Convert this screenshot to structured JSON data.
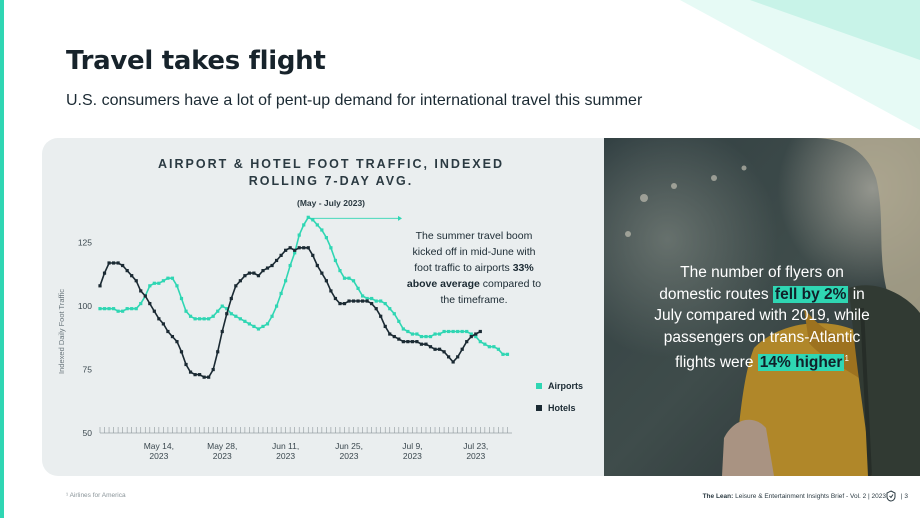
{
  "page": {
    "title": "Travel takes flight",
    "subtitle": "U.S. consumers have a lot of pent-up demand for international travel this summer"
  },
  "chart_data": {
    "type": "line",
    "title_line1": "AIRPORT & HOTEL FOOT TRAFFIC, INDEXED",
    "title_line2": "ROLLING 7-DAY AVG.",
    "subtitle": "(May - July 2023)",
    "ylabel": "Indexed Daily Foot Traffic",
    "ylim": [
      50,
      130
    ],
    "yticks": [
      50,
      75,
      100,
      125
    ],
    "x_start": "2023-05-01",
    "x_end": "2023-07-31",
    "xticks": [
      {
        "day": 13,
        "line1": "May 14,",
        "line2": "2023"
      },
      {
        "day": 27,
        "line1": "May 28,",
        "line2": "2023"
      },
      {
        "day": 41,
        "line1": "Jun 11,",
        "line2": "2023"
      },
      {
        "day": 55,
        "line1": "Jun 25,",
        "line2": "2023"
      },
      {
        "day": 69,
        "line1": "Jul 9,",
        "line2": "2023"
      },
      {
        "day": 83,
        "line1": "Jul 23,",
        "line2": "2023"
      }
    ],
    "legend_position": "bottom-right",
    "series": [
      {
        "name": "Airports",
        "color": "#2fd6b3",
        "values": [
          99,
          99,
          99,
          99,
          98,
          98,
          99,
          99,
          99,
          101,
          104,
          108,
          109,
          109,
          110,
          111,
          111,
          108,
          103,
          98,
          96,
          95,
          95,
          95,
          95,
          96,
          98,
          100,
          99,
          97,
          96,
          95,
          94,
          93,
          92,
          91,
          92,
          93,
          96,
          100,
          105,
          110,
          116,
          121,
          128,
          132,
          135,
          134,
          132,
          130,
          127,
          123,
          118,
          114,
          111,
          111,
          110,
          107,
          104,
          103,
          103,
          102,
          102,
          101,
          99,
          97,
          94,
          91,
          90,
          89,
          89,
          88,
          88,
          88,
          89,
          89,
          90,
          90,
          90,
          90,
          90,
          90,
          89,
          88,
          86,
          85,
          84,
          84,
          83,
          81,
          81
        ]
      },
      {
        "name": "Hotels",
        "color": "#1b2a33",
        "values": [
          108,
          113,
          117,
          117,
          117,
          116,
          114,
          112,
          110,
          106,
          104,
          101,
          98,
          95,
          93,
          90,
          88,
          86,
          82,
          77,
          74,
          73,
          73,
          72,
          72,
          75,
          82,
          90,
          97,
          103,
          108,
          110,
          112,
          113,
          113,
          112,
          114,
          115,
          116,
          118,
          120,
          122,
          123,
          122,
          123,
          123,
          123,
          120,
          116,
          113,
          110,
          106,
          103,
          101,
          101,
          102,
          102,
          102,
          102,
          102,
          101,
          99,
          96,
          92,
          89,
          88,
          87,
          86,
          86,
          86,
          86,
          85,
          85,
          84,
          83,
          83,
          82,
          80,
          78,
          80,
          83,
          86,
          88,
          89,
          90
        ],
        "start_day": 0
      }
    ],
    "annotation": {
      "line1": "The summer travel boom",
      "line2": "kicked off in mid-June with",
      "line3_pre": "foot traffic to airports ",
      "line3_bold": "33%",
      "line4_bold": "above average",
      "line4_post": " compared to",
      "line5": "the timeframe."
    }
  },
  "callout": {
    "line1": "The number of flyers on",
    "line2_pre": "domestic routes ",
    "line2_hl": "fell by 2%",
    "line2_post": " in",
    "line3": "July compared with 2019, while",
    "line4": "passengers on trans-Atlantic",
    "line5_pre": "flights were ",
    "line5_hl": "14% higher",
    "line5_sup": "1"
  },
  "footer": {
    "footnote": "¹ Airlines for America",
    "brand": "The Lean:",
    "report": " Leisure & Entertainment Insights Brief - Vol. 2  |  2023",
    "page_sep": "|",
    "page_number": "3"
  },
  "colors": {
    "accent": "#2fd6b3",
    "dark": "#1b2a33",
    "panel": "#eaeeef"
  }
}
